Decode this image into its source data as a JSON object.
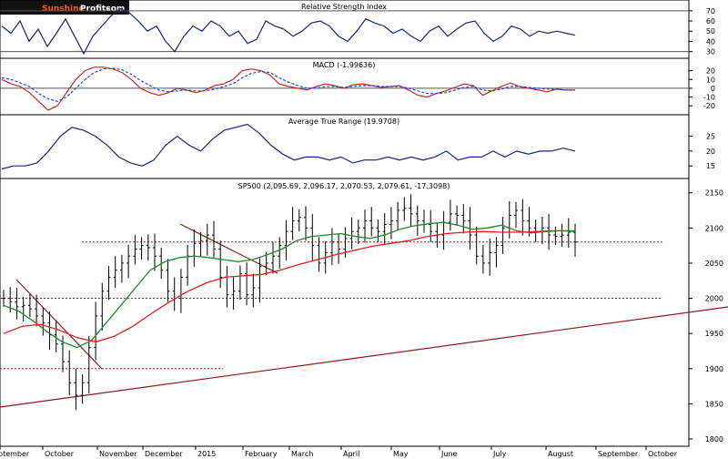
{
  "watermark": {
    "brand_a": "Sunshine",
    "brand_b": "Profits",
    "brand_c": ".com"
  },
  "chart_data": [
    {
      "type": "line",
      "title": "Relative Strength Index",
      "yticks": [
        30,
        40,
        50,
        60,
        70
      ],
      "ylim": [
        27,
        77
      ],
      "guides": [
        30,
        70
      ],
      "series": [
        {
          "values": [
            55,
            48,
            60,
            40,
            52,
            35,
            48,
            62,
            45,
            28,
            45,
            55,
            65,
            72,
            68,
            60,
            50,
            55,
            40,
            30,
            45,
            55,
            50,
            60,
            55,
            45,
            50,
            38,
            42,
            60,
            55,
            52,
            45,
            50,
            58,
            60,
            55,
            45,
            40,
            50,
            62,
            58,
            55,
            48,
            52,
            45,
            40,
            50,
            55,
            45,
            52,
            58,
            60,
            48,
            40,
            45,
            55,
            52,
            45,
            50,
            48,
            50,
            48,
            46
          ]
        }
      ]
    },
    {
      "type": "line",
      "title": "MACD (-1.99636)",
      "yticks": [
        -20,
        -10,
        0,
        10,
        20
      ],
      "ylim": [
        -26,
        30
      ],
      "guides": [
        0
      ],
      "series": [
        {
          "values": [
            10,
            5,
            2,
            -5,
            -15,
            -25,
            -20,
            -5,
            10,
            20,
            24,
            24,
            22,
            18,
            10,
            0,
            -5,
            -8,
            -5,
            0,
            -2,
            -5,
            -2,
            3,
            5,
            10,
            20,
            22,
            20,
            15,
            5,
            2,
            0,
            -2,
            2,
            5,
            3,
            0,
            4,
            5,
            3,
            1,
            2,
            3,
            -2,
            -8,
            -10,
            -6,
            -3,
            1,
            5,
            3,
            -8,
            -3,
            2,
            6,
            2,
            0,
            -2,
            -4,
            -1,
            -2,
            -2
          ]
        },
        {
          "values": [
            12,
            10,
            6,
            2,
            -6,
            -12,
            -15,
            -10,
            0,
            10,
            18,
            22,
            23,
            21,
            16,
            9,
            3,
            -2,
            -4,
            -3,
            -2,
            -3,
            -3,
            -1,
            2,
            5,
            12,
            17,
            19,
            18,
            12,
            7,
            3,
            0,
            0,
            2,
            2,
            1,
            2,
            3,
            3,
            2,
            2,
            2,
            0,
            -3,
            -6,
            -6,
            -5,
            -2,
            1,
            2,
            -2,
            -3,
            -1,
            2,
            2,
            1,
            0,
            -1,
            -1,
            -2,
            -2
          ]
        }
      ]
    },
    {
      "type": "line",
      "title": "Average True Range (19.9708)",
      "yticks": [
        15,
        20,
        25
      ],
      "ylim": [
        12,
        31
      ],
      "series": [
        {
          "values": [
            14,
            15,
            15,
            16,
            20,
            25,
            28,
            27,
            25,
            22,
            18,
            16,
            15,
            17,
            22,
            25,
            22,
            20,
            24,
            27,
            28,
            29,
            26,
            22,
            19,
            17,
            18,
            18,
            17,
            18,
            16,
            17,
            17,
            18,
            17,
            18,
            17,
            18,
            20,
            17,
            18,
            18,
            20,
            18,
            20,
            19,
            20,
            20,
            21,
            20
          ]
        }
      ]
    },
    {
      "type": "candlestick",
      "title": "SP500 (2,095.69, 2,096.17, 2,070.53, 2,079.61, -17.3098)",
      "months": [
        "September",
        "October",
        "November",
        "December",
        "2015",
        "February",
        "March",
        "April",
        "May",
        "June",
        "July",
        "August",
        "September",
        "October"
      ],
      "yticks": [
        1800,
        1850,
        1900,
        1950,
        2000,
        2050,
        2100,
        2150
      ],
      "ylim": [
        1800,
        2160
      ],
      "levels": [
        2080,
        2000,
        1900
      ],
      "closes": [
        2000,
        1995,
        1988,
        1990,
        1985,
        1975,
        1965,
        1948,
        1935,
        1910,
        1880,
        1862,
        1880,
        1930,
        1975,
        2010,
        2030,
        2040,
        2050,
        2060,
        2070,
        2075,
        2072,
        2060,
        2040,
        2010,
        2000,
        2030,
        2060,
        2078,
        2082,
        2090,
        2070,
        2030,
        2005,
        2010,
        2035,
        2005,
        2015,
        2045,
        2050,
        2060,
        2075,
        2095,
        2110,
        2115,
        2100,
        2075,
        2050,
        2065,
        2080,
        2070,
        2085,
        2095,
        2100,
        2110,
        2100,
        2095,
        2105,
        2110,
        2125,
        2128,
        2120,
        2110,
        2105,
        2095,
        2090,
        2108,
        2120,
        2118,
        2110,
        2090,
        2060,
        2050,
        2065,
        2075,
        2100,
        2118,
        2125,
        2110,
        2100,
        2095,
        2100,
        2090,
        2088,
        2090,
        2094,
        2080
      ],
      "series": [
        {
          "name": "SMA short",
          "values": [
            1990,
            1982,
            1968,
            1952,
            1938,
            1930,
            1940,
            1965,
            1990,
            2015,
            2040,
            2052,
            2058,
            2060,
            2058,
            2055,
            2052,
            2055,
            2062,
            2070,
            2082,
            2088,
            2090,
            2092,
            2088,
            2085,
            2090,
            2098,
            2103,
            2106,
            2108,
            2104,
            2098,
            2100,
            2104,
            2096,
            2093,
            2095,
            2096,
            2095
          ]
        },
        {
          "name": "SMA long",
          "values": [
            1950,
            1960,
            1963,
            1955,
            1944,
            1938,
            1946,
            1960,
            1978,
            1995,
            2010,
            2022,
            2030,
            2032,
            2034,
            2040,
            2048,
            2055,
            2062,
            2068,
            2074,
            2078,
            2082,
            2088,
            2092,
            2094,
            2095,
            2094,
            2094,
            2095,
            2096,
            2096
          ]
        }
      ]
    }
  ]
}
